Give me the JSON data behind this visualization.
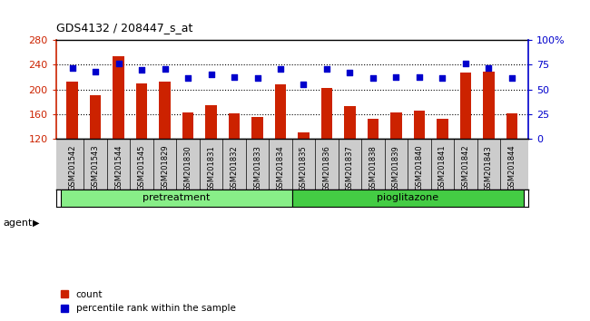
{
  "title": "GDS4132 / 208447_s_at",
  "categories": [
    "GSM201542",
    "GSM201543",
    "GSM201544",
    "GSM201545",
    "GSM201829",
    "GSM201830",
    "GSM201831",
    "GSM201832",
    "GSM201833",
    "GSM201834",
    "GSM201835",
    "GSM201836",
    "GSM201837",
    "GSM201838",
    "GSM201839",
    "GSM201840",
    "GSM201841",
    "GSM201842",
    "GSM201843",
    "GSM201844"
  ],
  "bar_values": [
    213,
    191,
    254,
    210,
    213,
    163,
    175,
    162,
    155,
    208,
    130,
    203,
    173,
    152,
    163,
    165,
    152,
    228,
    229,
    161
  ],
  "dot_values": [
    72,
    68,
    76,
    70,
    71,
    62,
    65,
    63,
    62,
    71,
    55,
    71,
    67,
    62,
    63,
    63,
    62,
    76,
    72,
    62
  ],
  "bar_color": "#cc2200",
  "dot_color": "#0000cc",
  "bar_bottom": 120,
  "ylim_left": [
    120,
    280
  ],
  "ylim_right": [
    0,
    100
  ],
  "yticks_left": [
    120,
    160,
    200,
    240,
    280
  ],
  "yticks_right": [
    0,
    25,
    50,
    75,
    100
  ],
  "yticklabels_right": [
    "0",
    "25",
    "50",
    "75",
    "100%"
  ],
  "groups": [
    {
      "display": "pretreatment",
      "start": 0,
      "end": 10,
      "color": "#88ee88"
    },
    {
      "display": "pioglitazone",
      "start": 10,
      "end": 20,
      "color": "#44cc44"
    }
  ],
  "agent_label": "agent",
  "legend_items": [
    {
      "label": "count",
      "color": "#cc2200"
    },
    {
      "label": "percentile rank within the sample",
      "color": "#0000cc"
    }
  ],
  "bg_color": "#ffffff",
  "bar_width": 0.5,
  "xticklabel_bg": "#cccccc"
}
